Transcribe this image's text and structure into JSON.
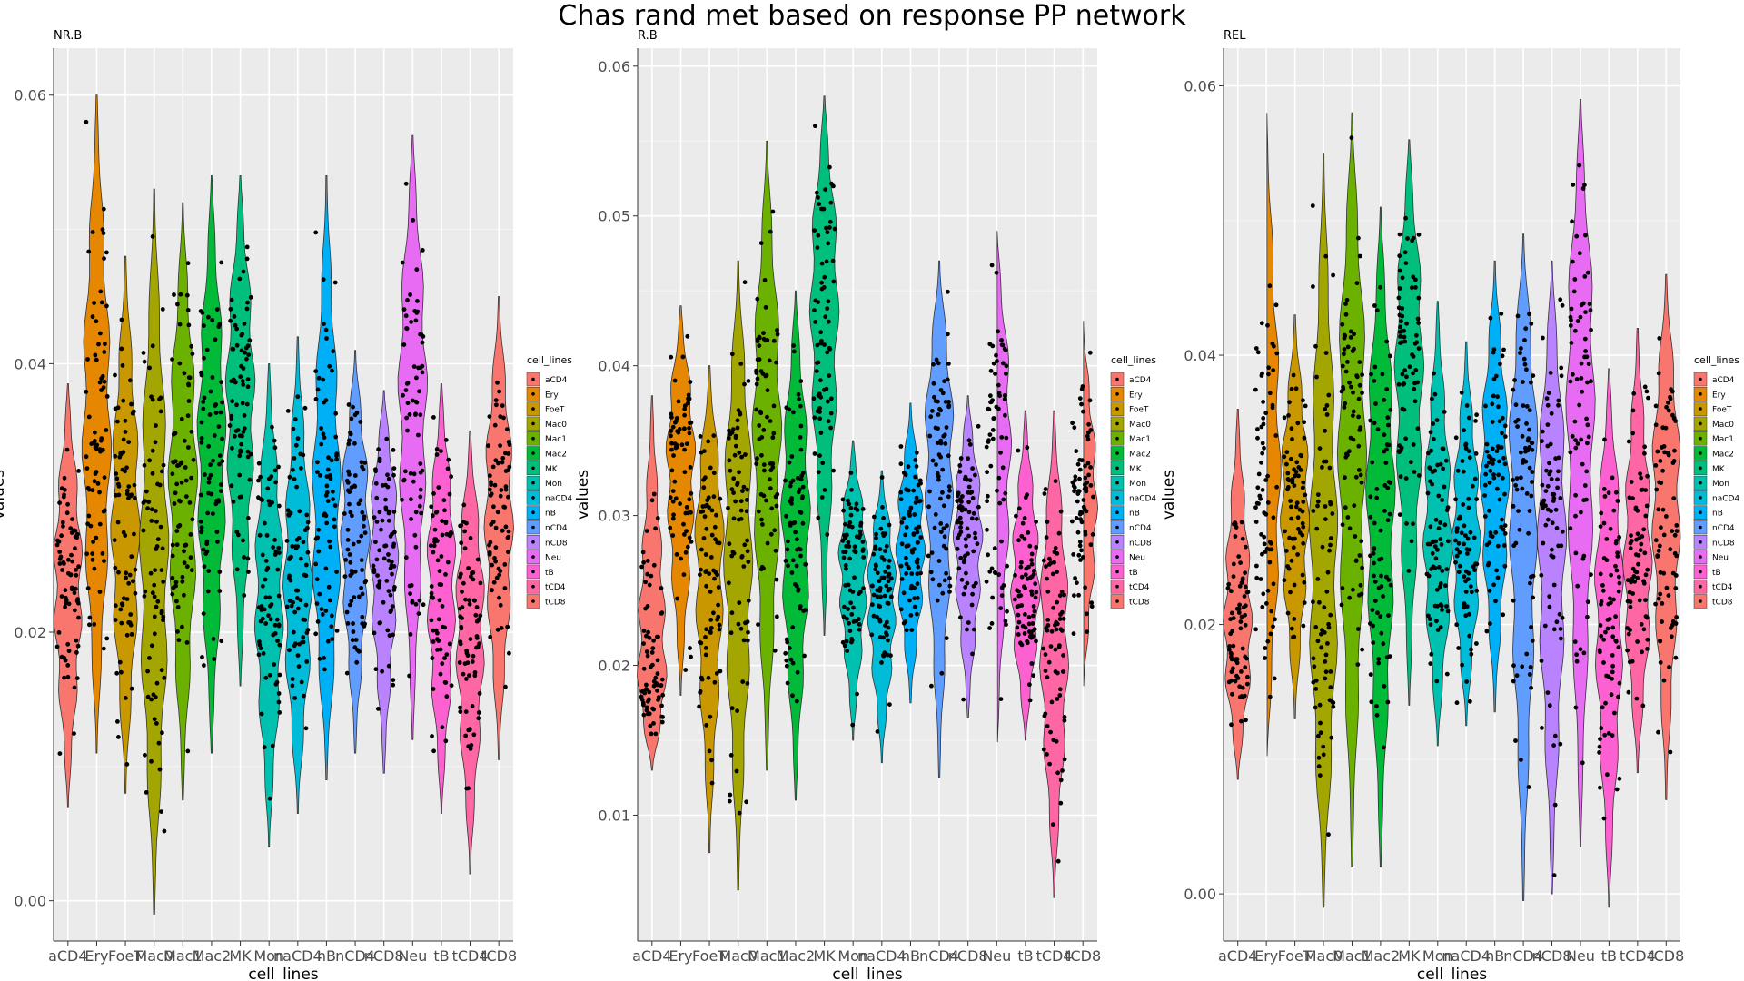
{
  "figure": {
    "title": "Chas rand met based on response PP network"
  },
  "legend": {
    "title": "cell_lines"
  },
  "categories": [
    "aCD4",
    "Ery",
    "FoeT",
    "Mac0",
    "Mac1",
    "Mac2",
    "MK",
    "Mon",
    "naCD4",
    "nB",
    "nCD4",
    "nCD8",
    "Neu",
    "tB",
    "tCD4",
    "tCD8"
  ],
  "colors": [
    "#F8766D",
    "#E58700",
    "#C99800",
    "#A3A500",
    "#6BB100",
    "#00BA38",
    "#00BF7D",
    "#00C0AF",
    "#00BCD8",
    "#00B0F6",
    "#619CFF",
    "#B983FF",
    "#E76BF3",
    "#FD61D1",
    "#FF67A4",
    "#F8766D"
  ],
  "chart_data": [
    {
      "type": "violin",
      "panel_label": "NR.B",
      "xlabel": "cell_lines",
      "ylabel": "values",
      "ylim": [
        -0.003,
        0.0635
      ],
      "yticks": [
        "0.00",
        "0.02",
        "0.04",
        "0.06"
      ],
      "ytick_values": [
        0.0,
        0.02,
        0.04,
        0.06
      ],
      "series": [
        {
          "category": "aCD4",
          "min": 0.007,
          "max": 0.0385,
          "median": 0.024
        },
        {
          "category": "Ery",
          "min": 0.011,
          "max": 0.06,
          "median": 0.035
        },
        {
          "category": "FoeT",
          "min": 0.008,
          "max": 0.048,
          "median": 0.028
        },
        {
          "category": "Mac0",
          "min": -0.001,
          "max": 0.053,
          "median": 0.025
        },
        {
          "category": "Mac1",
          "min": 0.0075,
          "max": 0.052,
          "median": 0.031
        },
        {
          "category": "Mac2",
          "min": 0.011,
          "max": 0.054,
          "median": 0.033
        },
        {
          "category": "MK",
          "min": 0.016,
          "max": 0.054,
          "median": 0.038
        },
        {
          "category": "Mon",
          "min": 0.004,
          "max": 0.04,
          "median": 0.023
        },
        {
          "category": "naCD4",
          "min": 0.0065,
          "max": 0.042,
          "median": 0.023
        },
        {
          "category": "nB",
          "min": 0.009,
          "max": 0.054,
          "median": 0.028
        },
        {
          "category": "nCD4",
          "min": 0.011,
          "max": 0.041,
          "median": 0.028
        },
        {
          "category": "nCD8",
          "min": 0.0095,
          "max": 0.038,
          "median": 0.027
        },
        {
          "category": "Neu",
          "min": 0.012,
          "max": 0.057,
          "median": 0.038
        },
        {
          "category": "tB",
          "min": 0.0065,
          "max": 0.0385,
          "median": 0.024
        },
        {
          "category": "tCD4",
          "min": 0.002,
          "max": 0.035,
          "median": 0.021
        },
        {
          "category": "tCD8",
          "min": 0.0105,
          "max": 0.045,
          "median": 0.029
        }
      ]
    },
    {
      "type": "violin",
      "panel_label": "R.B",
      "xlabel": "cell_lines",
      "ylabel": "values",
      "ylim": [
        0.0016,
        0.0612
      ],
      "yticks": [
        "0.01",
        "0.02",
        "0.03",
        "0.04",
        "0.05",
        "0.06"
      ],
      "ytick_values": [
        0.01,
        0.02,
        0.03,
        0.04,
        0.05,
        0.06
      ],
      "series": [
        {
          "category": "aCD4",
          "min": 0.013,
          "max": 0.038,
          "median": 0.019
        },
        {
          "category": "Ery",
          "min": 0.018,
          "max": 0.044,
          "median": 0.034
        },
        {
          "category": "FoeT",
          "min": 0.0075,
          "max": 0.04,
          "median": 0.028
        },
        {
          "category": "Mac0",
          "min": 0.005,
          "max": 0.047,
          "median": 0.029
        },
        {
          "category": "Mac1",
          "min": 0.013,
          "max": 0.055,
          "median": 0.036
        },
        {
          "category": "Mac2",
          "min": 0.011,
          "max": 0.045,
          "median": 0.03
        },
        {
          "category": "MK",
          "min": 0.022,
          "max": 0.058,
          "median": 0.045
        },
        {
          "category": "Mon",
          "min": 0.015,
          "max": 0.035,
          "median": 0.027
        },
        {
          "category": "naCD4",
          "min": 0.0135,
          "max": 0.033,
          "median": 0.025
        },
        {
          "category": "nB",
          "min": 0.0175,
          "max": 0.0375,
          "median": 0.028
        },
        {
          "category": "nCD4",
          "min": 0.0125,
          "max": 0.047,
          "median": 0.035
        },
        {
          "category": "nCD8",
          "min": 0.0165,
          "max": 0.038,
          "median": 0.029
        },
        {
          "category": "Neu",
          "min": 0.014,
          "max": 0.049,
          "median": 0.036
        },
        {
          "category": "tB",
          "min": 0.015,
          "max": 0.037,
          "median": 0.025
        },
        {
          "category": "tCD4",
          "min": 0.0045,
          "max": 0.037,
          "median": 0.022
        },
        {
          "category": "tCD8",
          "min": 0.018,
          "max": 0.043,
          "median": 0.031
        }
      ]
    },
    {
      "type": "violin",
      "panel_label": "REL",
      "xlabel": "cell_lines",
      "ylabel": "values",
      "ylim": [
        -0.0035,
        0.0628
      ],
      "yticks": [
        "0.00",
        "0.02",
        "0.04",
        "0.06"
      ],
      "ytick_values": [
        0.0,
        0.02,
        0.04,
        0.06
      ],
      "series": [
        {
          "category": "aCD4",
          "min": 0.0085,
          "max": 0.036,
          "median": 0.019
        },
        {
          "category": "Ery",
          "min": 0.009,
          "max": 0.058,
          "median": 0.031
        },
        {
          "category": "FoeT",
          "min": 0.013,
          "max": 0.043,
          "median": 0.029
        },
        {
          "category": "Mac0",
          "min": -0.001,
          "max": 0.055,
          "median": 0.023
        },
        {
          "category": "Mac1",
          "min": 0.002,
          "max": 0.058,
          "median": 0.035
        },
        {
          "category": "Mac2",
          "min": 0.002,
          "max": 0.051,
          "median": 0.03
        },
        {
          "category": "MK",
          "min": 0.014,
          "max": 0.056,
          "median": 0.04
        },
        {
          "category": "Mon",
          "min": 0.011,
          "max": 0.044,
          "median": 0.026
        },
        {
          "category": "naCD4",
          "min": 0.0125,
          "max": 0.041,
          "median": 0.026
        },
        {
          "category": "nB",
          "min": 0.0135,
          "max": 0.047,
          "median": 0.031
        },
        {
          "category": "nCD4",
          "min": -0.0005,
          "max": 0.049,
          "median": 0.032
        },
        {
          "category": "nCD8",
          "min": 0.0,
          "max": 0.047,
          "median": 0.028
        },
        {
          "category": "Neu",
          "min": 0.0035,
          "max": 0.059,
          "median": 0.038
        },
        {
          "category": "tB",
          "min": -0.001,
          "max": 0.039,
          "median": 0.022
        },
        {
          "category": "tCD4",
          "min": 0.009,
          "max": 0.042,
          "median": 0.024
        },
        {
          "category": "tCD8",
          "min": 0.007,
          "max": 0.046,
          "median": 0.03
        }
      ]
    }
  ]
}
